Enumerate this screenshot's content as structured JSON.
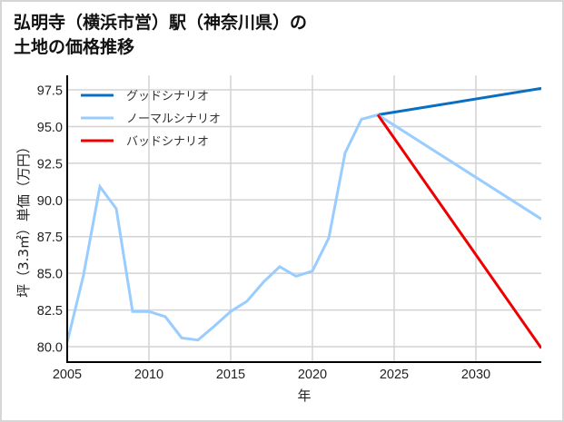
{
  "title": {
    "line1": "弘明寺（横浜市営）駅（神奈川県）の",
    "line2": "土地の価格推移"
  },
  "colors": {
    "good": "#0a6fc2",
    "normal": "#99ccff",
    "bad": "#ee0000",
    "grid": "#d3d3d3",
    "axis": "#000000",
    "frame": "#d6d6d6"
  },
  "chart_data": {
    "type": "line",
    "title": "弘明寺（横浜市営）駅（神奈川県）の土地の価格推移",
    "xlabel": "年",
    "ylabel": "坪（3.3㎡）単価（万円）",
    "xlim": [
      2005,
      2034
    ],
    "ylim": [
      78.95,
      98.49
    ],
    "grid": true,
    "legend_position": "upper left",
    "x_ticks": [
      2005,
      2010,
      2015,
      2020,
      2025,
      2030
    ],
    "x_tick_labels": [
      "2005",
      "2010",
      "2015",
      "2020",
      "2025",
      "2030"
    ],
    "y_ticks": [
      80.0,
      82.5,
      85.0,
      87.5,
      90.0,
      92.5,
      95.0,
      97.5
    ],
    "y_tick_labels": [
      "80.0",
      "82.5",
      "85.0",
      "87.5",
      "90.0",
      "92.5",
      "95.0",
      "97.5"
    ],
    "series": [
      {
        "name": "グッドシナリオ",
        "color": "#0a6fc2",
        "x": [
          2024,
          2034
        ],
        "values": [
          95.8,
          97.6
        ]
      },
      {
        "name": "ノーマルシナリオ",
        "color": "#99ccff",
        "x": [
          2005,
          2006,
          2007,
          2008,
          2009,
          2010,
          2011,
          2012,
          2013,
          2014,
          2015,
          2016,
          2017,
          2018,
          2019,
          2020,
          2021,
          2022,
          2023,
          2024,
          2034
        ],
        "values": [
          80.3,
          84.9,
          90.9,
          89.4,
          82.4,
          82.4,
          82.05,
          80.6,
          80.45,
          81.4,
          82.4,
          83.1,
          84.4,
          85.45,
          84.8,
          85.15,
          87.4,
          93.2,
          95.5,
          95.8,
          88.7
        ]
      },
      {
        "name": "バッドシナリオ",
        "color": "#ee0000",
        "x": [
          2024,
          2034
        ],
        "values": [
          95.8,
          79.9
        ]
      }
    ]
  }
}
